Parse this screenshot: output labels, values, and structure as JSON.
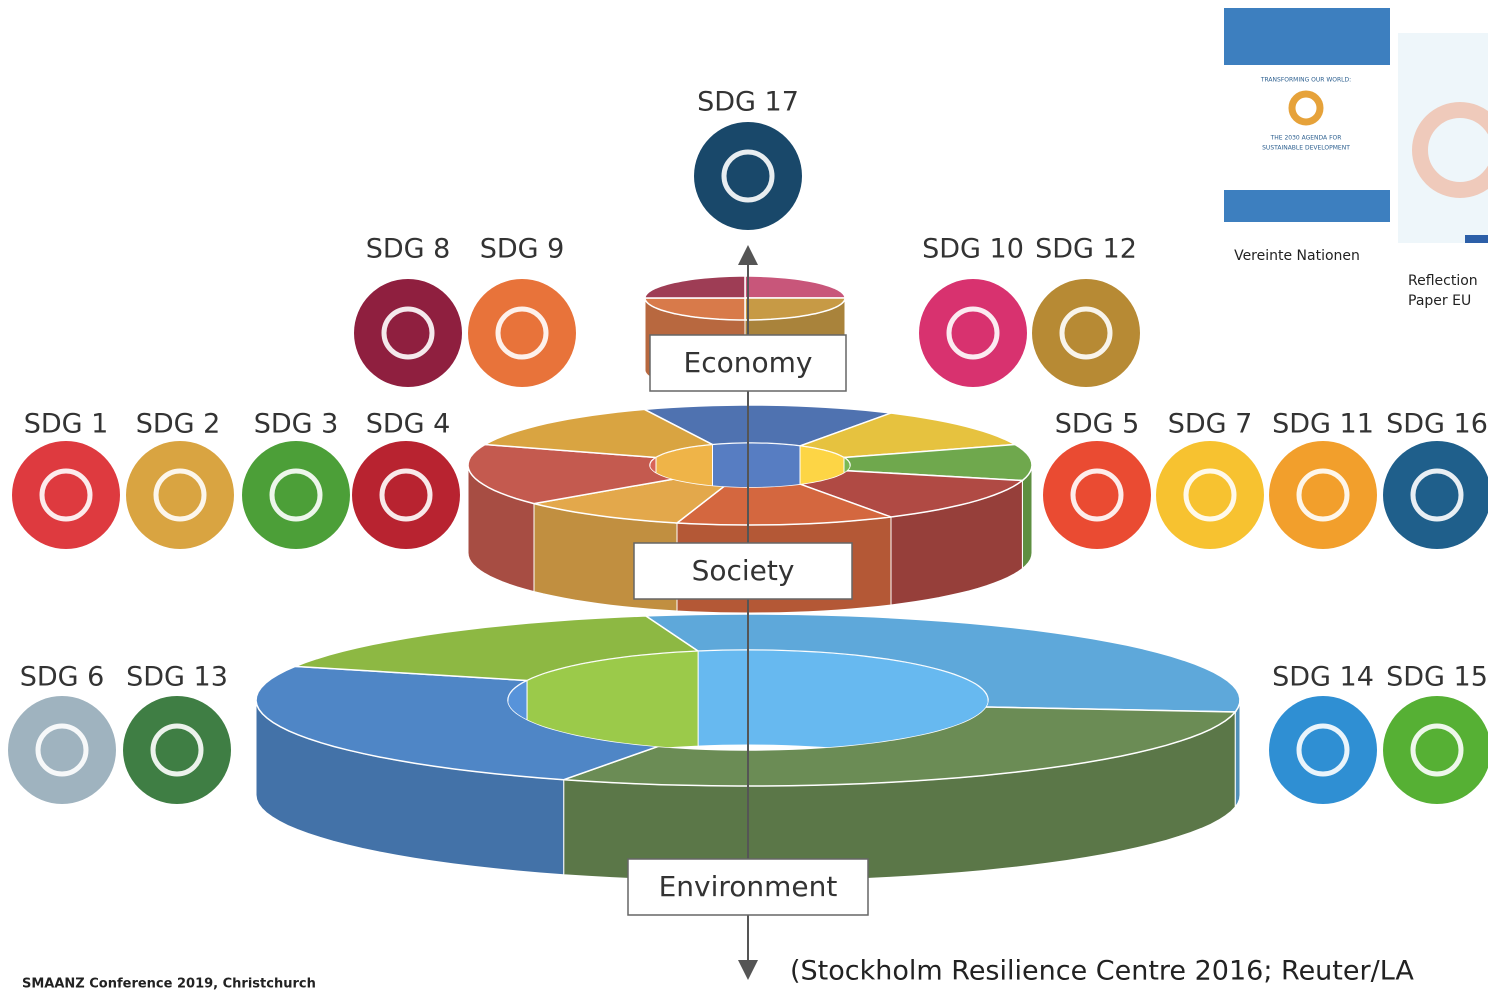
{
  "sdgs": [
    {
      "label": "SDG 17",
      "color": "#19486a"
    },
    {
      "label": "SDG 8",
      "color": "#8f1f3f"
    },
    {
      "label": "SDG 9",
      "color": "#e8733a"
    },
    {
      "label": "SDG 10",
      "color": "#d8326f"
    },
    {
      "label": "SDG 12",
      "color": "#b78a34"
    },
    {
      "label": "SDG 1",
      "color": "#de3a3f"
    },
    {
      "label": "SDG 2",
      "color": "#d9a441"
    },
    {
      "label": "SDG 3",
      "color": "#4c9f38"
    },
    {
      "label": "SDG 4",
      "color": "#b82330"
    },
    {
      "label": "SDG 5",
      "color": "#ea4b32"
    },
    {
      "label": "SDG 7",
      "color": "#f7c230"
    },
    {
      "label": "SDG 11",
      "color": "#f29f2c"
    },
    {
      "label": "SDG 16",
      "color": "#1f5f8b"
    },
    {
      "label": "SDG 6",
      "color": "#9fb3bf"
    },
    {
      "label": "SDG 13",
      "color": "#3f7e44"
    },
    {
      "label": "SDG 14",
      "color": "#2f8fd3"
    },
    {
      "label": "SDG 15",
      "color": "#56b034"
    }
  ],
  "layers": [
    {
      "label": "Economy"
    },
    {
      "label": "Society"
    },
    {
      "label": "Environment"
    }
  ],
  "publications": [
    {
      "caption": "Vereinte Nationen",
      "cover_lines": [
        "TRANSFORMING OUR WORLD:",
        "THE 2030 AGENDA FOR",
        "SUSTAINABLE DEVELOPMENT"
      ]
    },
    {
      "caption_lines": [
        "Reflection",
        "Paper EU"
      ]
    }
  ],
  "citation": "(Stockholm Resilience Centre 2016; Reuter/LA",
  "footer": "SMAANZ Conference 2019, Christchurch"
}
